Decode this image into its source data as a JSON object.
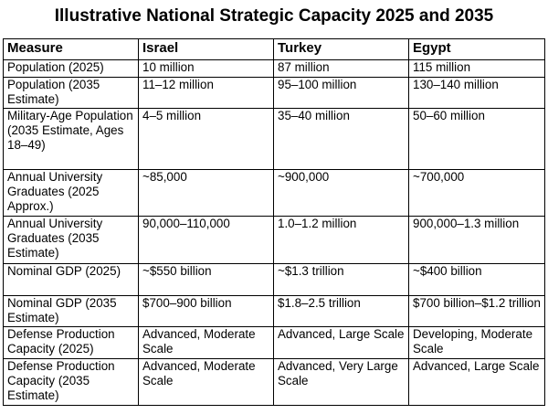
{
  "title": "Illustrative National Strategic Capacity 2025 and 2035",
  "columns": [
    "Measure",
    "Israel",
    "Turkey",
    "Egypt"
  ],
  "rows": [
    {
      "measure": "Population (2025)",
      "israel": "10 million",
      "turkey": "87 million",
      "egypt": "115 million"
    },
    {
      "measure": "Population (2035 Estimate)",
      "israel": "11–12 million",
      "turkey": "95–100 million",
      "egypt": "130–140 million"
    },
    {
      "measure": "Military-Age Population (2035 Estimate, Ages 18–49)",
      "israel": "4–5 million",
      "turkey": "35–40 million",
      "egypt": "50–60 million"
    },
    {
      "measure": "Annual University Graduates (2025 Approx.)",
      "israel": "~85,000",
      "turkey": "~900,000",
      "egypt": "~700,000"
    },
    {
      "measure": "Annual University Graduates (2035 Estimate)",
      "israel": "90,000–110,000",
      "turkey": "1.0–1.2 million",
      "egypt": "900,000–1.3 million"
    },
    {
      "measure": "Nominal GDP (2025)",
      "israel": "~$550 billion",
      "turkey": "~$1.3 trillion",
      "egypt": "~$400 billion"
    },
    {
      "measure": "Nominal GDP (2035 Estimate)",
      "israel": "$700–900 billion",
      "turkey": "$1.8–2.5 trillion",
      "egypt": "$700 billion–$1.2 trillion"
    },
    {
      "measure": "Defense Production Capacity (2025)",
      "israel": "Advanced, Moderate Scale",
      "turkey": "Advanced, Large Scale",
      "egypt": "Developing, Moderate Scale"
    },
    {
      "measure": "Defense Production Capacity (2035 Estimate)",
      "israel": "Advanced, Moderate Scale",
      "turkey": "Advanced, Very Large Scale",
      "egypt": "Advanced, Large Scale"
    }
  ]
}
